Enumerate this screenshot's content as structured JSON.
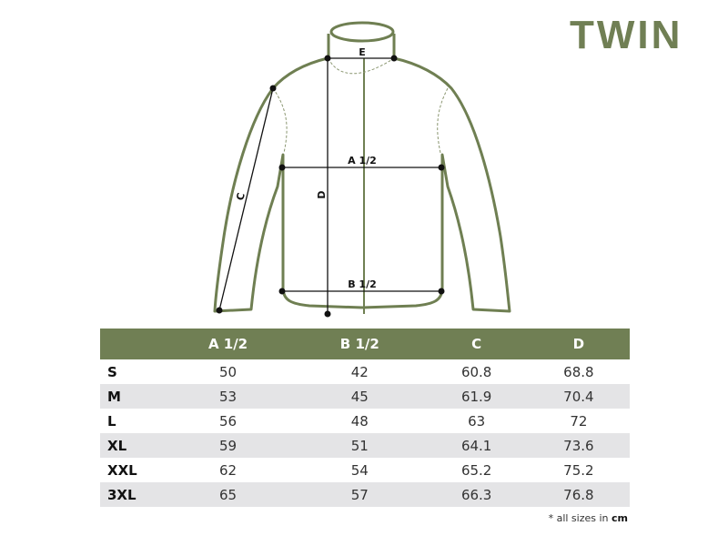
{
  "brand_color": "#707f54",
  "title": "TWIN",
  "diagram": {
    "labels": {
      "e": "E",
      "a": "A 1/2",
      "b": "B 1/2",
      "c": "C",
      "d": "D"
    }
  },
  "table": {
    "headers": [
      "",
      "A 1/2",
      "B 1/2",
      "C",
      "D"
    ],
    "rows": [
      [
        "S",
        "50",
        "42",
        "60.8",
        "68.8"
      ],
      [
        "M",
        "53",
        "45",
        "61.9",
        "70.4"
      ],
      [
        "L",
        "56",
        "48",
        "63",
        "72"
      ],
      [
        "XL",
        "59",
        "51",
        "64.1",
        "73.6"
      ],
      [
        "XXL",
        "62",
        "54",
        "65.2",
        "75.2"
      ],
      [
        "3XL",
        "65",
        "57",
        "66.3",
        "76.8"
      ]
    ]
  },
  "note": {
    "prefix": "* all sizes in",
    "unit": "cm"
  }
}
